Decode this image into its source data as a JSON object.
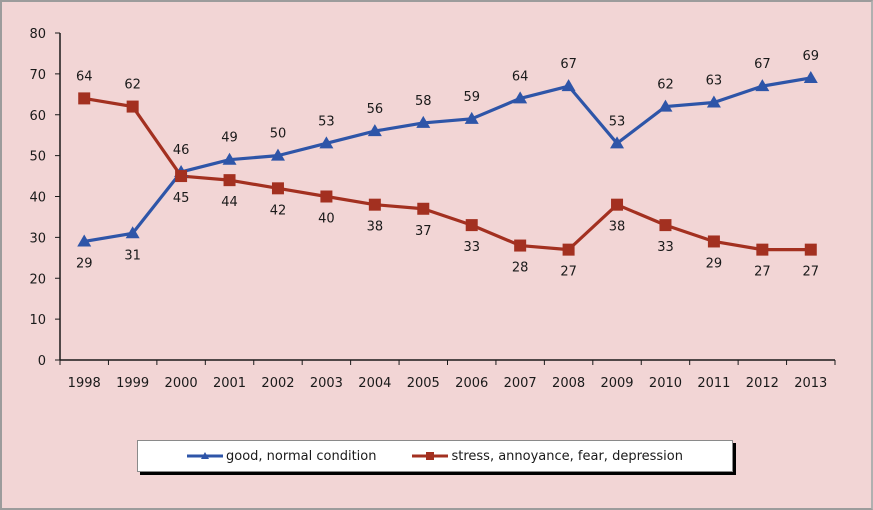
{
  "chart_data": {
    "type": "line",
    "title": "",
    "xlabel": "",
    "ylabel": "",
    "categories": [
      "1998",
      "1999",
      "2000",
      "2001",
      "2002",
      "2003",
      "2004",
      "2005",
      "2006",
      "2007",
      "2008",
      "2009",
      "2010",
      "2011",
      "2012",
      "2013"
    ],
    "ylim": [
      0,
      80
    ],
    "yticks": [
      0,
      10,
      20,
      30,
      40,
      50,
      60,
      70,
      80
    ],
    "yticks_labels": [
      "0",
      "10",
      "20",
      "30",
      "40",
      "50",
      "60",
      "70",
      "80"
    ],
    "grid": false,
    "legend_position": "bottom",
    "series": [
      {
        "name": "good, normal condition",
        "color": "#2e55a8",
        "marker": "triangle",
        "values": [
          29,
          31,
          46,
          49,
          50,
          53,
          56,
          58,
          59,
          64,
          67,
          53,
          62,
          63,
          67,
          69
        ],
        "labels": [
          "29",
          "31",
          "46",
          "49",
          "50",
          "53",
          "56",
          "58",
          "59",
          "64",
          "67",
          "53",
          "62",
          "63",
          "67",
          "69"
        ]
      },
      {
        "name": "stress, annoyance, fear, depression",
        "color": "#a33020",
        "marker": "square",
        "values": [
          64,
          62,
          45,
          44,
          42,
          40,
          38,
          37,
          33,
          28,
          27,
          38,
          33,
          29,
          27,
          27
        ],
        "labels": [
          "64",
          "62",
          "45",
          "44",
          "42",
          "40",
          "38",
          "37",
          "33",
          "28",
          "27",
          "38",
          "33",
          "29",
          "27",
          "27"
        ]
      }
    ]
  },
  "colors": {
    "background": "#f2d5d5",
    "axis": "#1a1a1a"
  }
}
